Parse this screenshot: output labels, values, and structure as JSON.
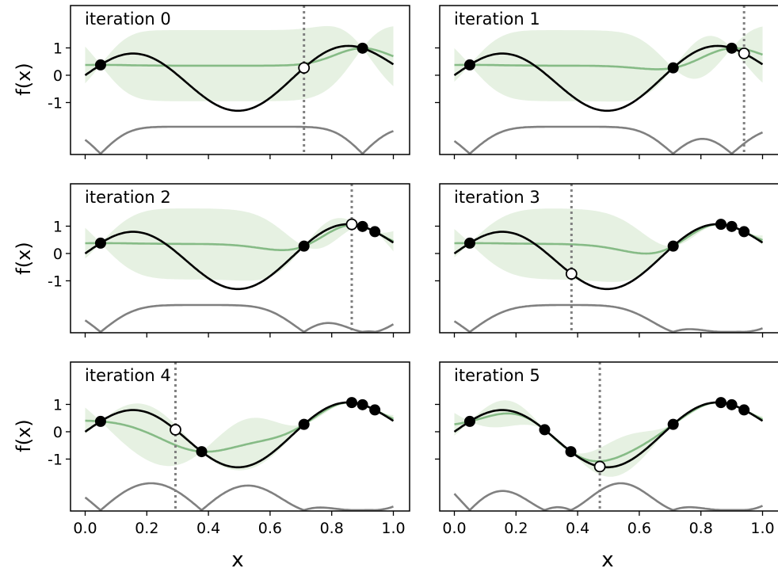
{
  "chart_data": {
    "type": "line",
    "panel_layout": "3 rows x 2 columns",
    "xlabel": "x",
    "ylabel": "f(x)",
    "xlim": [
      -0.04,
      1.04
    ],
    "ylim": [
      -2.9,
      2.55
    ],
    "x_ticks": [
      0.0,
      0.2,
      0.4,
      0.6,
      0.8,
      1.0
    ],
    "x_tick_labels": [
      "0.0",
      "0.2",
      "0.4",
      "0.6",
      "0.8",
      "1.0"
    ],
    "y_ticks": [
      1,
      0,
      -1
    ],
    "y_tick_labels": [
      "1",
      "0",
      "-1"
    ],
    "colors": {
      "true_function": "#000000",
      "posterior_mean": "#86bb86",
      "confidence_band": "#e6f1e2",
      "acquisition": "#808080",
      "next_query_line": "#808080"
    },
    "panels": [
      {
        "title": "iteration 0",
        "observed_x": [
          0.05,
          0.9
        ],
        "next_x": 0.71
      },
      {
        "title": "iteration 1",
        "observed_x": [
          0.05,
          0.71,
          0.9
        ],
        "next_x": 0.94
      },
      {
        "title": "iteration 2",
        "observed_x": [
          0.05,
          0.71,
          0.9,
          0.94
        ],
        "next_x": 0.865
      },
      {
        "title": "iteration 3",
        "observed_x": [
          0.05,
          0.71,
          0.865,
          0.9,
          0.94
        ],
        "next_x": 0.38
      },
      {
        "title": "iteration 4",
        "observed_x": [
          0.05,
          0.378,
          0.71,
          0.865,
          0.9,
          0.94
        ],
        "next_x": 0.293
      },
      {
        "title": "iteration 5",
        "observed_x": [
          0.05,
          0.293,
          0.378,
          0.71,
          0.865,
          0.9,
          0.94
        ],
        "next_x": 0.472
      }
    ]
  }
}
